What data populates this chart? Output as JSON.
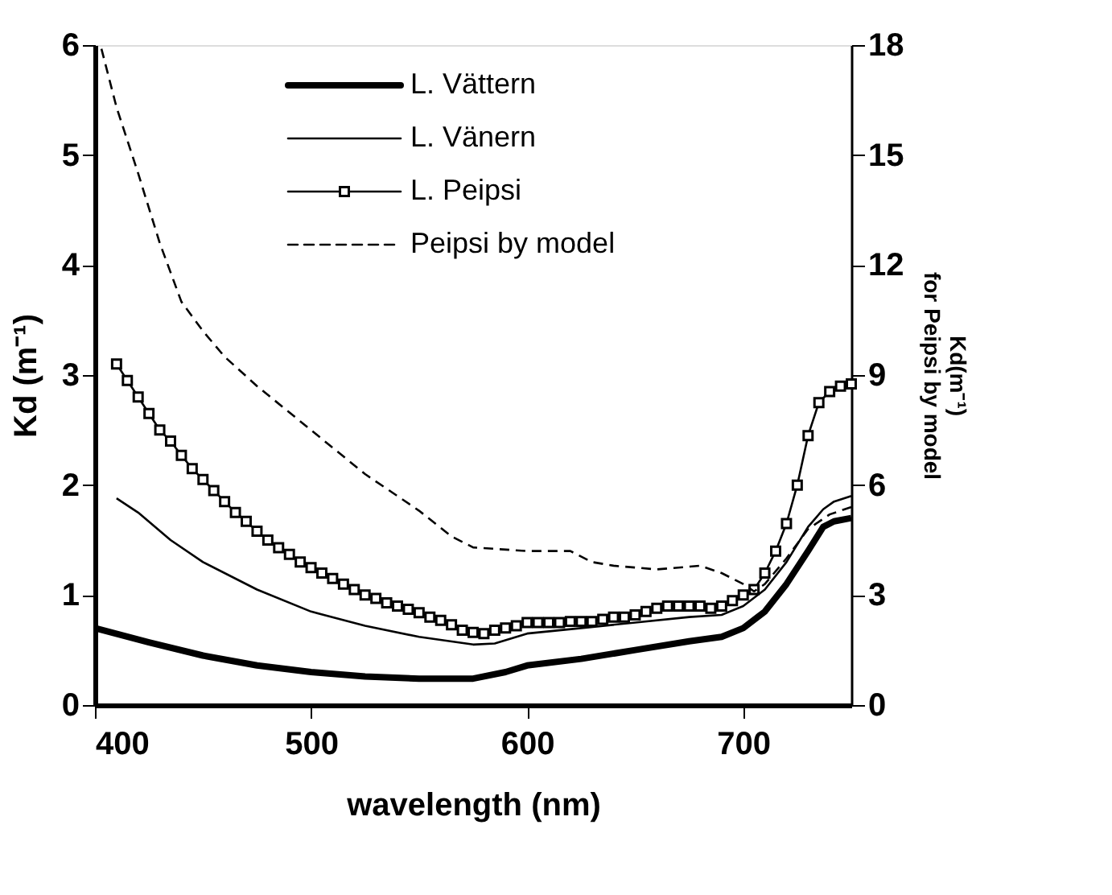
{
  "chart_data": {
    "type": "line",
    "xlabel": "wavelength (nm)",
    "ylabel": "Kd (m⁻¹)",
    "y2label": "Kd(m⁻¹)\nfor Peipsi by model",
    "xlim": [
      400,
      750
    ],
    "xticks": [
      400,
      500,
      600,
      700
    ],
    "ylim": [
      0,
      6
    ],
    "yticks": [
      0,
      1,
      2,
      3,
      4,
      5,
      6
    ],
    "y2lim": [
      0,
      18
    ],
    "y2ticks": [
      0,
      3,
      6,
      9,
      12,
      15,
      18
    ],
    "legend": "top",
    "grid": false,
    "series": [
      {
        "name": "L. Vättern",
        "color": "#000000",
        "line_style": "solid",
        "marker": "none",
        "x": [
          400,
          425,
          450,
          475,
          500,
          525,
          550,
          575,
          590,
          600,
          625,
          650,
          675,
          690,
          700,
          710,
          720,
          730,
          737,
          742,
          750
        ],
        "values": [
          0.7,
          0.57,
          0.45,
          0.36,
          0.3,
          0.26,
          0.24,
          0.24,
          0.3,
          0.36,
          0.42,
          0.5,
          0.58,
          0.62,
          0.7,
          0.85,
          1.1,
          1.4,
          1.62,
          1.67,
          1.7
        ]
      },
      {
        "name": "L. Vänern",
        "color": "#000000",
        "line_style": "solid",
        "marker": "none",
        "x": [
          410,
          420,
          435,
          450,
          475,
          500,
          525,
          550,
          575,
          585,
          600,
          625,
          650,
          675,
          690,
          700,
          710,
          720,
          730,
          737,
          742,
          750
        ],
        "values": [
          1.88,
          1.75,
          1.5,
          1.3,
          1.05,
          0.85,
          0.72,
          0.62,
          0.55,
          0.56,
          0.65,
          0.7,
          0.75,
          0.8,
          0.82,
          0.9,
          1.05,
          1.3,
          1.62,
          1.78,
          1.85,
          1.9
        ]
      },
      {
        "name": "L. Peipsi",
        "color": "#000000",
        "line_style": "solid",
        "marker": "square",
        "x": [
          410,
          415,
          420,
          425,
          430,
          435,
          440,
          445,
          450,
          455,
          460,
          465,
          470,
          475,
          480,
          485,
          490,
          495,
          500,
          505,
          510,
          515,
          520,
          525,
          530,
          535,
          540,
          545,
          550,
          555,
          560,
          565,
          570,
          575,
          580,
          585,
          590,
          595,
          600,
          605,
          610,
          615,
          620,
          625,
          630,
          635,
          640,
          645,
          650,
          655,
          660,
          665,
          670,
          675,
          680,
          685,
          690,
          695,
          700,
          705,
          710,
          715,
          720,
          725,
          730,
          735,
          740,
          745,
          750
        ],
        "values": [
          3.1,
          2.95,
          2.8,
          2.65,
          2.5,
          2.4,
          2.27,
          2.15,
          2.05,
          1.95,
          1.85,
          1.75,
          1.67,
          1.58,
          1.5,
          1.43,
          1.37,
          1.3,
          1.25,
          1.2,
          1.15,
          1.1,
          1.05,
          1.0,
          0.97,
          0.93,
          0.9,
          0.87,
          0.84,
          0.8,
          0.77,
          0.73,
          0.68,
          0.66,
          0.65,
          0.68,
          0.7,
          0.72,
          0.75,
          0.75,
          0.75,
          0.75,
          0.76,
          0.76,
          0.76,
          0.78,
          0.8,
          0.8,
          0.82,
          0.85,
          0.88,
          0.9,
          0.9,
          0.9,
          0.9,
          0.88,
          0.9,
          0.95,
          1.0,
          1.05,
          1.2,
          1.4,
          1.65,
          2.0,
          2.45,
          2.75,
          2.85,
          2.9,
          2.92
        ]
      },
      {
        "name": "Peipsi by model",
        "color": "#000000",
        "line_style": "dashed",
        "marker": "none",
        "axis": "y2",
        "x": [
          403,
          410,
          420,
          430,
          440,
          450,
          460,
          475,
          500,
          525,
          550,
          565,
          575,
          600,
          620,
          630,
          640,
          660,
          680,
          690,
          700,
          705,
          710,
          720,
          730,
          740,
          750
        ],
        "values": [
          17.9,
          16.3,
          14.5,
          12.6,
          11.0,
          10.2,
          9.5,
          8.7,
          7.5,
          6.3,
          5.3,
          4.6,
          4.3,
          4.2,
          4.2,
          3.9,
          3.8,
          3.7,
          3.8,
          3.6,
          3.3,
          3.1,
          3.3,
          4.0,
          4.8,
          5.2,
          5.4
        ]
      }
    ]
  }
}
